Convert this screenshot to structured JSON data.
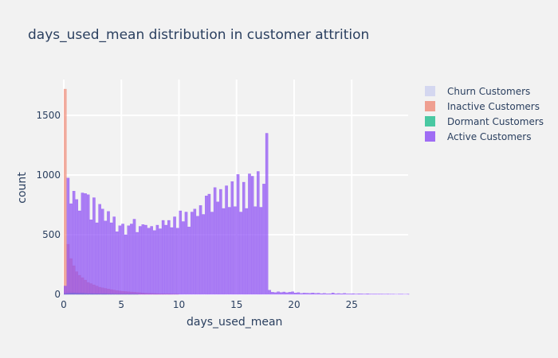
{
  "chart_data": {
    "type": "bar",
    "title": "days_used_mean distribution in customer attrition",
    "xlabel": "days_used_mean",
    "ylabel": "count",
    "x_ticks": [
      "0",
      "5",
      "10",
      "15",
      "20",
      "25"
    ],
    "y_ticks": [
      "0",
      "500",
      "1000",
      "1500"
    ],
    "xlim": [
      0,
      29.9
    ],
    "ylim": [
      0,
      1800
    ],
    "bin_width": 0.25,
    "barmode": "overlay",
    "grid": true,
    "legend_position": "top-right",
    "series": [
      {
        "name": "Churn Customers",
        "color": "#cdd1f0",
        "opacity": 0.7,
        "x_start": 0,
        "values": [
          20,
          25,
          22,
          20,
          18,
          16,
          15,
          14,
          12,
          11,
          10,
          10,
          9,
          8,
          8,
          7,
          6,
          6,
          5,
          5,
          5,
          4,
          4,
          4,
          3,
          3,
          3,
          3,
          2,
          2,
          2,
          2,
          2,
          2,
          2,
          1,
          1,
          1,
          1,
          1
        ]
      },
      {
        "name": "Inactive Customers",
        "color": "#ef8b79",
        "opacity": 0.7,
        "x_start": 0,
        "values": [
          1720,
          420,
          300,
          240,
          190,
          160,
          140,
          120,
          100,
          90,
          80,
          70,
          60,
          55,
          50,
          45,
          40,
          36,
          32,
          28,
          26,
          24,
          22,
          20,
          18,
          16,
          14,
          12,
          10,
          9,
          8,
          7,
          6,
          5,
          5,
          4,
          4,
          3,
          3,
          2
        ]
      },
      {
        "name": "Dormant Customers",
        "color": "#1fbe8f",
        "opacity": 0.7,
        "x_start": 0,
        "values": [
          5,
          8,
          10,
          10,
          9,
          8,
          8,
          7,
          6,
          6,
          5,
          5,
          4,
          4,
          4,
          3,
          3,
          3,
          2,
          2,
          2,
          2,
          2,
          1,
          1,
          1
        ]
      },
      {
        "name": "Active Customers",
        "color": "#8b4cf5",
        "opacity": 0.7,
        "x_start": 0,
        "values": [
          70,
          975,
          760,
          865,
          795,
          700,
          850,
          845,
          835,
          625,
          810,
          600,
          755,
          715,
          615,
          695,
          600,
          650,
          525,
          575,
          590,
          500,
          575,
          590,
          630,
          520,
          570,
          585,
          580,
          555,
          570,
          535,
          580,
          550,
          620,
          580,
          620,
          560,
          650,
          555,
          700,
          610,
          690,
          565,
          690,
          715,
          655,
          745,
          670,
          825,
          840,
          690,
          895,
          775,
          880,
          720,
          910,
          730,
          945,
          735,
          1005,
          690,
          940,
          720,
          1010,
          990,
          735,
          1030,
          730,
          925,
          1350,
          35,
          18,
          15,
          22,
          16,
          20,
          14,
          18,
          22,
          12,
          15,
          8,
          11,
          10,
          9,
          12,
          8,
          10,
          6,
          8,
          5,
          6,
          12,
          5,
          7,
          5,
          8,
          4,
          4,
          6,
          3,
          5,
          4,
          3,
          5,
          3,
          3,
          3,
          3,
          3,
          2,
          3,
          2,
          2,
          1,
          2,
          2,
          1,
          2
        ]
      }
    ]
  }
}
